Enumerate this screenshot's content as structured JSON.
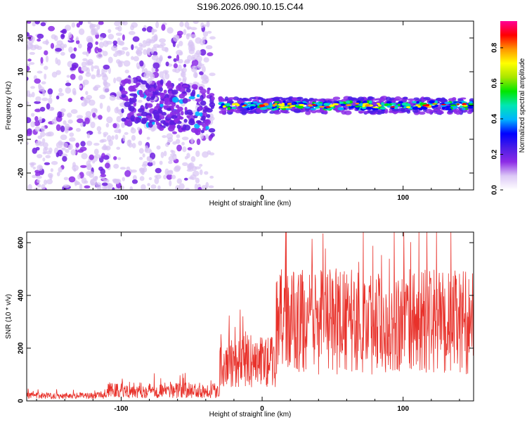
{
  "title": "S196.2026.090.10.15.C44",
  "chart_data": [
    {
      "type": "heatmap",
      "title": "S196.2026.090.10.15.C44",
      "xlabel": "Height of straight line (km)",
      "ylabel": "Frequency (Hz)",
      "xlim": [
        -167,
        150
      ],
      "ylim": [
        -25,
        25
      ],
      "xticks": [
        -100,
        0,
        100
      ],
      "yticks": [
        -20,
        -10,
        0,
        10,
        20
      ],
      "ridge": {
        "x_start": -30,
        "x_end": 150,
        "frequency": 0
      },
      "colorbar": {
        "label": "Normalized spectral amplitude",
        "range": [
          0.0,
          0.95
        ],
        "ticks": [
          0.0,
          0.2,
          0.4,
          0.6,
          0.8
        ],
        "colors": [
          "#ffffff",
          "#dcc8f6",
          "#8c2be6",
          "#4a1de6",
          "#0000ff",
          "#00b4ff",
          "#00e6b4",
          "#00e600",
          "#a8e600",
          "#ffff00",
          "#ff9600",
          "#ff0000",
          "#ff0096"
        ]
      }
    },
    {
      "type": "line",
      "xlabel": "Height of straight line (km)",
      "ylabel": "SNR (10 * v/v)",
      "xlim": [
        -167,
        150
      ],
      "ylim": [
        0,
        640
      ],
      "xticks": [
        -100,
        0,
        100
      ],
      "yticks": [
        0,
        200,
        400,
        600
      ],
      "color": "#e8312a",
      "segments": [
        {
          "x": [
            -167,
            -110
          ],
          "mean": 20,
          "noise": 12
        },
        {
          "x": [
            -110,
            -30
          ],
          "mean": 40,
          "noise": 30
        },
        {
          "x": [
            -30,
            10
          ],
          "mean": 150,
          "noise": 100
        },
        {
          "x": [
            10,
            150
          ],
          "mean": 300,
          "noise": 200
        }
      ],
      "max": 640
    }
  ]
}
